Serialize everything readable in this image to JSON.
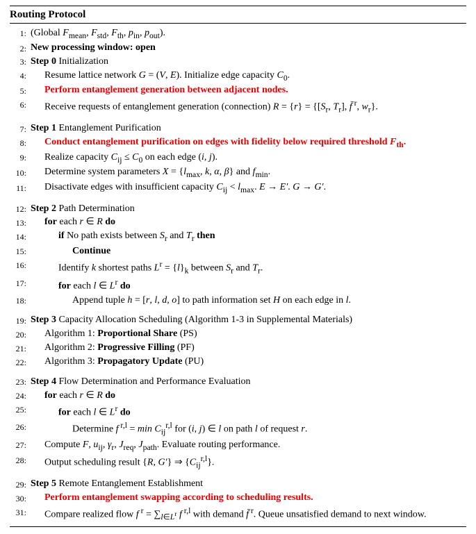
{
  "title": "Routing Protocol",
  "lines": [
    {
      "n": "1:",
      "cls": "",
      "html": "(Global <i>F</i><sub>mean</sub>, <i>F</i><sub>std</sub>, <i>F</i><sub>th</sub>, <i>p</i><sub>in</sub>, <i>p</i><sub>out</sub>)."
    },
    {
      "n": "2:",
      "cls": "",
      "html": "<b>New processing window: open</b>"
    },
    {
      "n": "3:",
      "cls": "",
      "html": "<b>Step 0</b> Initialization"
    },
    {
      "n": "4:",
      "cls": "ind1",
      "html": "Resume lattice network <i>G</i> = (<i>V</i>, <i>E</i>). Initialize edge capacity <i>C</i><sub>0</sub>."
    },
    {
      "n": "5:",
      "cls": "ind1",
      "html": "<span class='red bold'>Perform entanglement generation between adjacent nodes.</span>"
    },
    {
      "n": "6:",
      "cls": "ind1",
      "html": "Receive requests of entanglement generation (connection) <i>R</i> = {<i>r</i>} = {[<i>S</i><sub>r</sub>, <i>T</i><sub>r</sub>], <i>f&#772;</i><sup>&nbsp;r</sup>, <i>w</i><sub>r</sub>}."
    },
    {
      "gap": true
    },
    {
      "n": "7:",
      "cls": "",
      "html": "<b>Step 1</b> Entanglement Purification"
    },
    {
      "n": "8:",
      "cls": "ind1",
      "html": "<span class='red bold'>Conduct entanglement purification on edges with fidelity below required threshold <i>F</i><sub>th</sub>.</span>"
    },
    {
      "n": "9:",
      "cls": "ind1",
      "html": "Realize capacity <i>C</i><sub>ij</sub> ≤ <i>C</i><sub>0</sub> on each edge (<i>i</i>, <i>j</i>)."
    },
    {
      "n": "10:",
      "cls": "ind1",
      "html": "Determine system parameters <i>X</i> = {<i>l</i><sub>max</sub>, <i>k</i>, <i>α</i>, <i>β</i>} and <i>f</i><sub>min</sub>."
    },
    {
      "n": "11:",
      "cls": "ind1",
      "html": "Disactivate edges with insufficient capacity <i>C</i><sub>ij</sub> &lt; <i>l</i><sub>max</sub>. <i>E</i> → <i>E&#8242;</i>. <i>G</i> → <i>G&#8242;</i>."
    },
    {
      "gap": true
    },
    {
      "n": "12:",
      "cls": "",
      "html": "<b>Step 2</b> Path Determination"
    },
    {
      "n": "13:",
      "cls": "ind1",
      "html": "<b>for</b> each <i>r</i> ∈ <i>R</i> <b>do</b>"
    },
    {
      "n": "14:",
      "cls": "ind2",
      "html": "<b>if</b> No path exists between <i>S</i><sub>r</sub> and <i>T</i><sub>r</sub> <b>then</b>"
    },
    {
      "n": "15:",
      "cls": "ind3",
      "html": "<b>Continue</b>"
    },
    {
      "n": "16:",
      "cls": "ind2",
      "html": "Identify <i>k</i> shortest paths <i>L</i><sup>r</sup> = {<i>l</i>}<sub>k</sub> between <i>S</i><sub>r</sub> and <i>T</i><sub>r</sub>."
    },
    {
      "n": "17:",
      "cls": "ind2",
      "html": "<b>for</b> each <i>l</i> ∈ <i>L</i><sup>r</sup> <b>do</b>"
    },
    {
      "n": "18:",
      "cls": "ind3",
      "html": "Append tuple <i>h</i> = [<i>r</i>, <i>l</i>, <i>d</i>, <i>o</i>] to path information set <i>H</i> on each edge in <i>l</i>."
    },
    {
      "gap": true
    },
    {
      "n": "19:",
      "cls": "",
      "html": "<b>Step 3</b> Capacity Allocation Scheduling (Algorithm 1-3 in Supplemental Materials)"
    },
    {
      "n": "20:",
      "cls": "ind1",
      "html": "Algorithm 1: <b>Proportional Share</b> (PS)"
    },
    {
      "n": "21:",
      "cls": "ind1",
      "html": "Algorithm 2: <b>Progressive Filling</b> (PF)"
    },
    {
      "n": "22:",
      "cls": "ind1",
      "html": "Algorithm 3: <b>Propagatory Update</b> (PU)"
    },
    {
      "gap": true
    },
    {
      "n": "23:",
      "cls": "",
      "html": "<b>Step 4</b> Flow Determination and Performance Evaluation"
    },
    {
      "n": "24:",
      "cls": "ind1",
      "html": "<b>for</b> each <i>r</i> ∈ <i>R</i> <b>do</b>"
    },
    {
      "n": "25:",
      "cls": "ind2",
      "html": "<b>for</b> each <i>l</i> ∈ <i>L</i><sup>r</sup> <b>do</b>"
    },
    {
      "n": "26:",
      "cls": "ind3",
      "html": "Determine <i>f</i><sup>&nbsp;r,l</sup> = <i>min C</i><sub>ij</sub><sup>r,l</sup> for (<i>i</i>, <i>j</i>) ∈ <i>l</i> on path <i>l</i> of request <i>r</i>."
    },
    {
      "n": "27:",
      "cls": "ind1",
      "html": "Compute <i>F</i>, <i>u</i><sub>ij</sub>, <i>γ</i><sub>r</sub>, <i>J</i><sub>req</sub>, <i>J</i><sub>path</sub>. Evaluate routing performance."
    },
    {
      "n": "28:",
      "cls": "ind1",
      "html": "Output scheduling result {<i>R</i>, <i>G&#8242;</i>} ⇒ {<i>C</i><sub>ij</sub><sup>r,l</sup>}."
    },
    {
      "gap": true
    },
    {
      "n": "29:",
      "cls": "",
      "html": "<b>Step 5</b> Remote Entanglement Establishment"
    },
    {
      "n": "30:",
      "cls": "ind1",
      "html": "<span class='red bold'>Perform entanglement swapping according to scheduling results.</span>"
    },
    {
      "n": "31:",
      "cls": "ind1",
      "html": "Compare realized flow <i>f</i><sup>&nbsp;r</sup> = ∑<sub><i>l</i>∈<i>L</i><sup>r</sup></sub> <i>f</i><sup>&nbsp;r,l</sup> with demand <i>f&#772;</i><sup>&nbsp;r</sup>. Queue unsatisfied demand to next window."
    }
  ]
}
